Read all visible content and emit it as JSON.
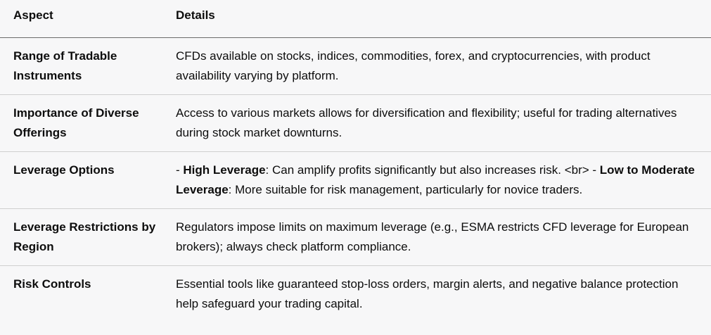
{
  "table": {
    "headers": [
      "Aspect",
      "Details"
    ],
    "rows": [
      {
        "aspect": "Range of Tradable Instruments",
        "details": "CFDs available on stocks, indices, commodities, forex, and cryptocurrencies, with product availability varying by platform."
      },
      {
        "aspect": "Importance of Diverse Offerings",
        "details": "Access to various markets allows for diversification and flexibility; useful for trading alternatives during stock market downturns."
      },
      {
        "aspect": "Leverage Options",
        "details_parts": {
          "p1": "- ",
          "b1": "High Leverage",
          "p2": ": Can amplify profits significantly but also increases risk. <br> - ",
          "b2": "Low to Moderate Leverage",
          "p3": ": More suitable for risk management, particularly for novice traders."
        }
      },
      {
        "aspect": "Leverage Restrictions by Region",
        "details": "Regulators impose limits on maximum leverage (e.g., ESMA restricts CFD leverage for European brokers); always check platform compliance."
      },
      {
        "aspect": "Risk Controls",
        "details": "Essential tools like guaranteed stop-loss orders, margin alerts, and negative balance protection help safeguard your trading capital."
      }
    ]
  }
}
